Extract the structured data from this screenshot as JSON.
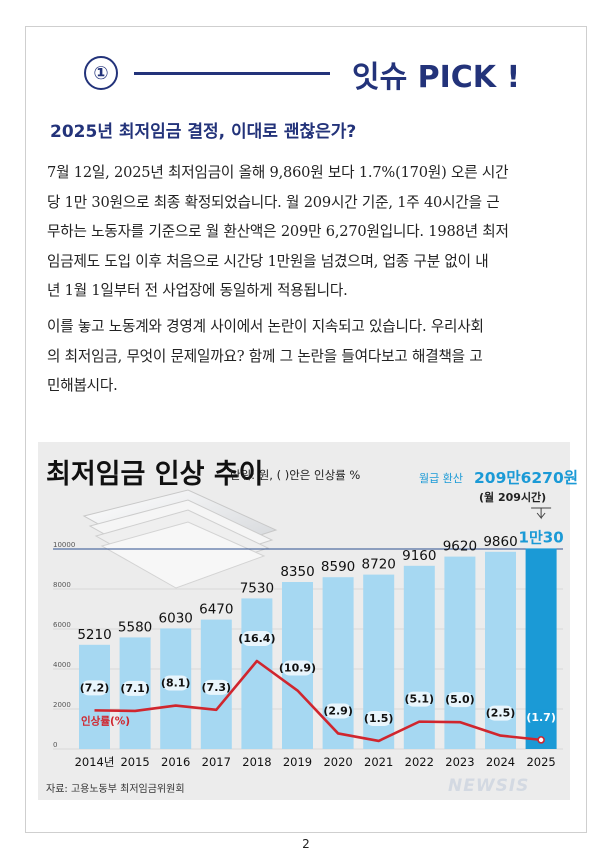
{
  "header": {
    "number": "①",
    "title": "잇슈 PICK !"
  },
  "article": {
    "subtitle": "2025년 최저임금 결정, 이대로 괜찮은가?",
    "paragraph1": [
      "  7월 12일, 2025년 최저임금이 올해 9,860원 보다 1.7%(170원) 오른 시간",
      "당 1만 30원으로 최종 확정되었습니다. 월 209시간 기준, 1주 40시간을 근",
      "무하는 노동자를 기준으로 월 환산액은 209만 6,270원입니다. 1988년 최저",
      "임금제도 도입 이후 처음으로 시간당 1만원을 넘겼으며, 업종 구분 없이 내",
      "년 1월 1일부터 전 사업장에 동일하게 적용됩니다."
    ],
    "paragraph2": [
      "이를 놓고 노동계와 경영계 사이에서 논란이 지속되고 있습니다. 우리사회",
      "의 최저임금, 무엇이 문제일까요? 함께 그 논란을 들여다보고 해결책을 고",
      "민해봅시다."
    ]
  },
  "page_number": "2",
  "chart_data": {
    "type": "bar",
    "title": "최저임금 인상 추이",
    "unit_note": "단위: 원, ( )안은 인상률 %",
    "callout": {
      "label": "월급 환산",
      "value": "209만6270원",
      "note": "(월 209시간)"
    },
    "categories": [
      "2014년",
      "2015",
      "2016",
      "2017",
      "2018",
      "2019",
      "2020",
      "2021",
      "2022",
      "2023",
      "2024",
      "2025"
    ],
    "values": [
      5210,
      5580,
      6030,
      6470,
      7530,
      8350,
      8590,
      8720,
      9160,
      9620,
      9860,
      10030
    ],
    "value_labels": [
      "5210",
      "5580",
      "6030",
      "6470",
      "7530",
      "8350",
      "8590",
      "8720",
      "9160",
      "9620",
      "9860",
      "1만30"
    ],
    "rate_series": {
      "name": "인상률(%)",
      "values": [
        7.2,
        7.1,
        8.1,
        7.3,
        16.4,
        10.9,
        2.9,
        1.5,
        5.1,
        5.0,
        2.5,
        1.7
      ],
      "labels": [
        "(7.2)",
        "(7.1)",
        "(8.1)",
        "(7.3)",
        "(16.4)",
        "(10.9)",
        "(2.9)",
        "(1.5)",
        "(5.1)",
        "(5.0)",
        "(2.5)",
        "(1.7)"
      ]
    },
    "y_ticks": [
      "0",
      "2000",
      "4000",
      "6000",
      "8000",
      "10000"
    ],
    "ylim": [
      0,
      10000
    ],
    "highlight_category": "2025",
    "source": "자료: 고용노동부 최저임금위원회",
    "watermark": "NEWSIS",
    "colors": {
      "bar": "#a6d8f2",
      "bar_highlight": "#1b9ad6",
      "rate_line": "#d0262e",
      "label_bubble": "#000000",
      "header_accent": "#23337a"
    }
  }
}
